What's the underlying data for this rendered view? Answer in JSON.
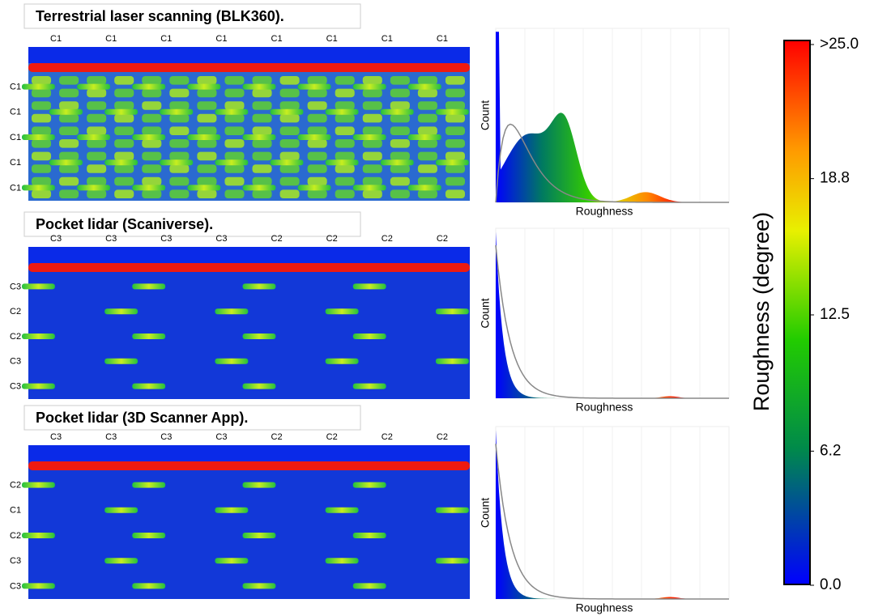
{
  "panels": [
    {
      "title": "Terrestrial laser scanning (BLK360).",
      "column_labels": [
        "C1",
        "C1",
        "C1",
        "C1",
        "C1",
        "C1",
        "C1",
        "C1"
      ],
      "row_labels": [
        "C1",
        "C1",
        "C1",
        "C1",
        "C1"
      ],
      "histogram": {
        "x_label": "Roughness",
        "y_label": "Count"
      }
    },
    {
      "title": "Pocket lidar (Scaniverse).",
      "column_labels": [
        "C3",
        "C3",
        "C3",
        "C3",
        "C2",
        "C2",
        "C2",
        "C2"
      ],
      "row_labels": [
        "C3",
        "C2",
        "C2",
        "C3",
        "C3"
      ],
      "histogram": {
        "x_label": "Roughness",
        "y_label": "Count"
      }
    },
    {
      "title": "Pocket lidar (3D Scanner App).",
      "column_labels": [
        "C3",
        "C3",
        "C3",
        "C3",
        "C2",
        "C2",
        "C2",
        "C2"
      ],
      "row_labels": [
        "C2",
        "C1",
        "C2",
        "C3",
        "C3"
      ],
      "histogram": {
        "x_label": "Roughness",
        "y_label": "Count"
      }
    }
  ],
  "colorbar": {
    "label": "Roughness (degree)",
    "ticks": [
      {
        "value": 0,
        "label": "0.0"
      },
      6.2,
      12.5,
      18.8,
      {
        "value": 25,
        "label": ">25.0"
      }
    ]
  }
}
